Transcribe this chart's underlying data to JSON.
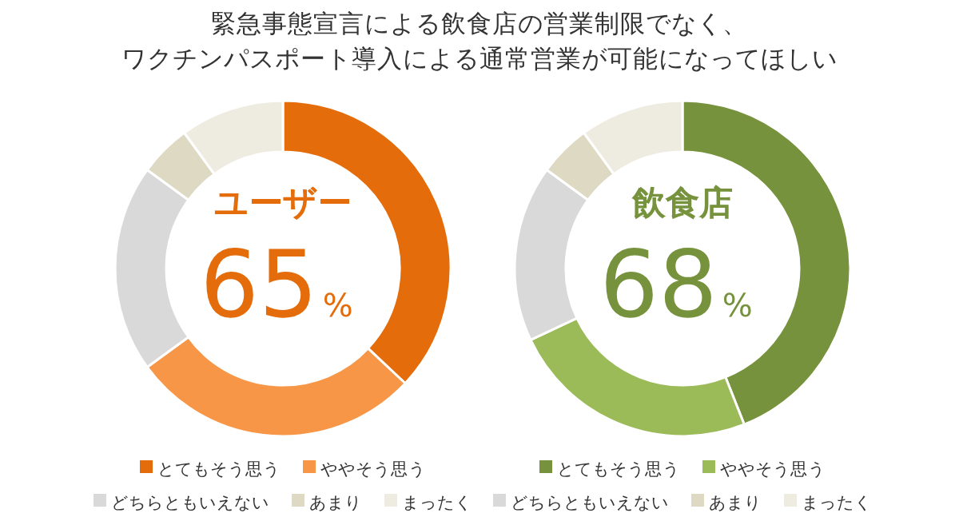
{
  "chart_data": [
    {
      "type": "donut",
      "title": "緊急事態宣言による飲食店の営業制限でなく、",
      "subtitle": "ワクチンパスポート導入による通常営業が可能になってほしい",
      "categories": [
        "とてもそう思う",
        "ややそう思う",
        "どちらともいえない",
        "あまり",
        "まったく"
      ],
      "values": [
        37,
        28,
        20,
        5,
        10
      ],
      "colors": [
        "#e46c0a",
        "#f79646",
        "#d9d9d9",
        "#ddd9c3",
        "#eeece1"
      ],
      "annotations": [
        "ユーザー",
        "65%"
      ],
      "legend": "bottom"
    },
    {
      "type": "donut",
      "categories": [
        "とてもそう思う",
        "ややそう思う",
        "どちらともいえない",
        "あまり",
        "まったく"
      ],
      "values": [
        44,
        24,
        17,
        5,
        10
      ],
      "colors": [
        "#76923c",
        "#9bbb59",
        "#d9d9d9",
        "#ddd9c3",
        "#eeece1"
      ],
      "annotations": [
        "飲食店",
        "68%"
      ],
      "legend": "bottom"
    }
  ]
}
